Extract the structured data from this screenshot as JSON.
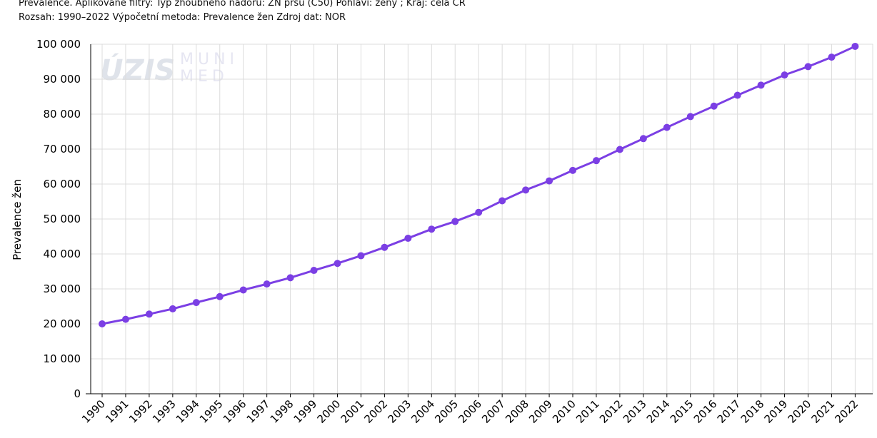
{
  "header": {
    "line1": "Prevalence. Aplikované filtry: Typ zhoubného nádoru: ZN prsu (C50) Pohlaví: ženy ; Kraj: celá CR",
    "line2": "Rozsah: 1990–2022 Výpočetní metoda: Prevalence žen Zdroj dat: NOR"
  },
  "watermark": {
    "logo1": "ÚZIS",
    "logo2a": "MUNI",
    "logo2b": "MED"
  },
  "colors": {
    "series": "#7b3fe4",
    "grid": "#dcdcdc"
  },
  "chart_data": {
    "type": "line",
    "title": "",
    "xlabel": "",
    "ylabel": "Prevalence žen",
    "ylim": [
      0,
      100000
    ],
    "yticks": [
      0,
      10000,
      20000,
      30000,
      40000,
      50000,
      60000,
      70000,
      80000,
      90000,
      100000
    ],
    "ytick_labels": [
      "0",
      "10 000",
      "20 000",
      "30 000",
      "40 000",
      "50 000",
      "60 000",
      "70 000",
      "80 000",
      "90 000",
      "100 000"
    ],
    "grid": true,
    "categories": [
      "1990",
      "1991",
      "1992",
      "1993",
      "1994",
      "1995",
      "1996",
      "1997",
      "1998",
      "1999",
      "2000",
      "2001",
      "2002",
      "2003",
      "2004",
      "2005",
      "2006",
      "2007",
      "2008",
      "2009",
      "2010",
      "2011",
      "2012",
      "2013",
      "2014",
      "2015",
      "2016",
      "2017",
      "2018",
      "2019",
      "2020",
      "2021",
      "2022"
    ],
    "series": [
      {
        "values": [
          20000,
          21300,
          22800,
          24300,
          26100,
          27800,
          29700,
          31400,
          33200,
          35300,
          37300,
          39500,
          41900,
          44500,
          47100,
          49300,
          51900,
          55200,
          58300,
          60900,
          63900,
          66700,
          69900,
          73000,
          76200,
          79300,
          82300,
          85400,
          88300,
          91200,
          93600,
          96300,
          99400
        ]
      }
    ]
  }
}
